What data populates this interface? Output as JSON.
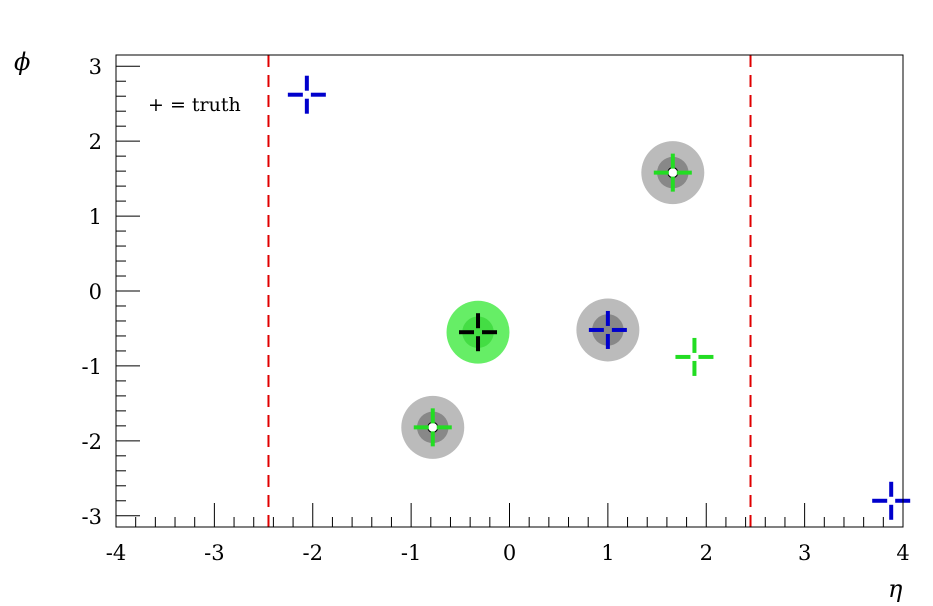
{
  "chart_data": {
    "type": "scatter",
    "xlabel": "η",
    "ylabel": "ϕ",
    "xlim": [
      -4,
      4
    ],
    "ylim": [
      -3.15,
      3.15
    ],
    "x_ticks": [
      -4,
      -3,
      -2,
      -1,
      0,
      1,
      2,
      3,
      4
    ],
    "x_tick_labels": [
      "-4",
      "-3",
      "-2",
      "-1",
      "0",
      "1",
      "2",
      "3",
      "4"
    ],
    "y_ticks": [
      -3,
      -2,
      -1,
      0,
      1,
      2,
      3
    ],
    "y_tick_labels": [
      "-3",
      "-2",
      "-1",
      "0",
      "1",
      "2",
      "3"
    ],
    "annotation": "+ = truth",
    "grid": false,
    "cut_lines": {
      "x": [
        -2.45,
        2.45
      ],
      "color": "#e00000"
    },
    "clusters": [
      {
        "x": -0.32,
        "y": -0.55,
        "color": "#66ee66",
        "inner_color": "#44dd44",
        "truth_color": "#000000"
      },
      {
        "x": 1.0,
        "y": -0.52,
        "color": "#bbbbbb",
        "inner_color": "#888888",
        "truth_color": "#0000cc"
      },
      {
        "x": -0.78,
        "y": -1.82,
        "color": "#bbbbbb",
        "inner_color": "#888888",
        "truth_color": "#22dd22",
        "core": true
      },
      {
        "x": 1.66,
        "y": 1.58,
        "color": "#bbbbbb",
        "inner_color": "#888888",
        "truth_color": "#22dd22",
        "core": true
      }
    ],
    "truth_markers": [
      {
        "x": -2.06,
        "y": 2.62,
        "color": "#0000cc"
      },
      {
        "x": 1.88,
        "y": -0.88,
        "color": "#22dd22"
      },
      {
        "x": 3.88,
        "y": -2.8,
        "color": "#0000cc"
      }
    ]
  }
}
